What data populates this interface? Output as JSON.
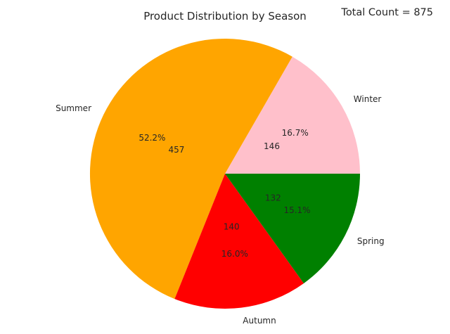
{
  "chart_data": {
    "type": "pie",
    "title": "Product Distribution by Season",
    "annotation": "Total Count = 875",
    "categories": [
      "Winter",
      "Summer",
      "Autumn",
      "Spring"
    ],
    "values": [
      146,
      457,
      140,
      132
    ],
    "percent_labels": [
      "16.7%",
      "52.2%",
      "16.0%",
      "15.1%"
    ],
    "colors": [
      "#ffc0cb",
      "#ffa500",
      "#ff0000",
      "#008000"
    ],
    "start_angle_deg": 0,
    "direction": "counterclockwise"
  }
}
